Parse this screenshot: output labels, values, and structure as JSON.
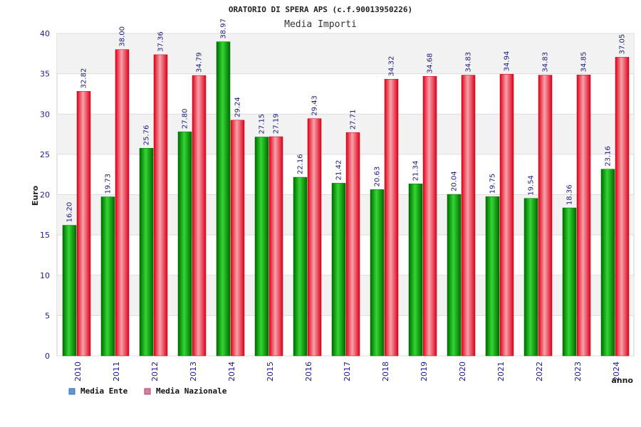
{
  "chart_data": {
    "type": "bar",
    "title": "ORATORIO DI SPERA APS (c.f.90013950226)",
    "subtitle": "Media Importi",
    "ylabel": "Euro",
    "xlabel": "anno",
    "ylim": [
      0,
      40
    ],
    "yticks": [
      0,
      5,
      10,
      15,
      20,
      25,
      30,
      35,
      40
    ],
    "grid": true,
    "legend_position": "bottom-left",
    "categories": [
      "2010",
      "2011",
      "2012",
      "2013",
      "2014",
      "2015",
      "2016",
      "2017",
      "2018",
      "2019",
      "2020",
      "2021",
      "2022",
      "2023",
      "2024"
    ],
    "series": [
      {
        "name": "Media Ente",
        "color": "#00b000",
        "legend_color": "#5b9bd5",
        "values": [
          16.2,
          19.73,
          25.76,
          27.8,
          38.97,
          27.15,
          22.16,
          21.42,
          20.63,
          21.34,
          20.04,
          19.75,
          19.54,
          18.36,
          23.16
        ],
        "labels": [
          "16.20",
          "19.73",
          "25.76",
          "27.80",
          "38.97",
          "27.15",
          "22.16",
          "21.42",
          "20.63",
          "21.34",
          "20.04",
          "19.75",
          "19.54",
          "18.36",
          "23.16"
        ]
      },
      {
        "name": "Media Nazionale",
        "color": "#e8202a",
        "legend_color": "#d77fa1",
        "values": [
          32.82,
          38.0,
          37.36,
          34.79,
          29.24,
          27.19,
          29.43,
          27.71,
          34.32,
          34.68,
          34.83,
          34.94,
          34.83,
          34.85,
          37.05
        ],
        "labels": [
          "32.82",
          "38.00",
          "37.36",
          "34.79",
          "29.24",
          "27.19",
          "29.43",
          "27.71",
          "34.32",
          "34.68",
          "34.83",
          "34.94",
          "34.83",
          "34.85",
          "37.05"
        ]
      }
    ]
  }
}
